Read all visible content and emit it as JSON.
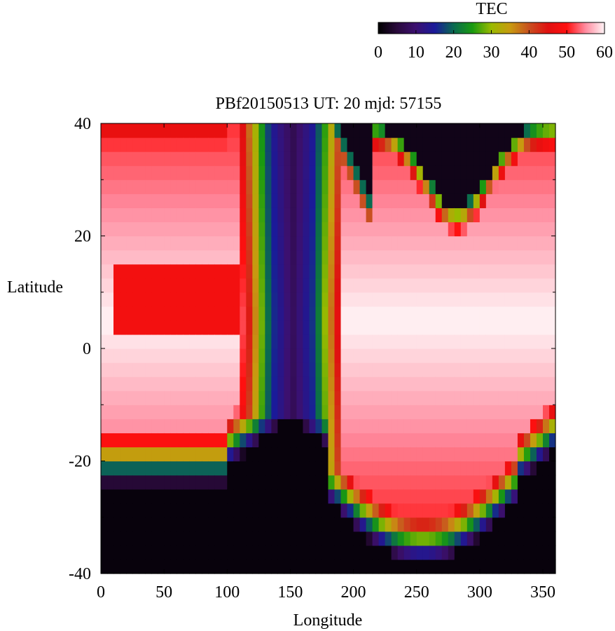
{
  "chart_data": {
    "type": "heatmap",
    "title": "PBf20150513  UT: 20  mjd: 57155",
    "xlabel": "Longitude",
    "ylabel": "Latitude",
    "xlim": [
      0,
      360
    ],
    "ylim": [
      -40,
      40
    ],
    "x_ticks": [
      "0",
      "50",
      "100",
      "150",
      "200",
      "250",
      "300",
      "350"
    ],
    "y_ticks": [
      "40",
      "20",
      "0",
      "-20",
      "-40"
    ],
    "grid": false,
    "colorbar": {
      "label": "TEC",
      "range": [
        0,
        60
      ],
      "ticks": [
        "0",
        "10",
        "20",
        "30",
        "40",
        "50",
        "60"
      ],
      "palette": [
        [
          0,
          "#000000"
        ],
        [
          5,
          "#2a0a3c"
        ],
        [
          10,
          "#3c1070"
        ],
        [
          15,
          "#1a1a9a"
        ],
        [
          20,
          "#0a6a50"
        ],
        [
          25,
          "#1a9a10"
        ],
        [
          30,
          "#9aba00"
        ],
        [
          35,
          "#c89a10"
        ],
        [
          40,
          "#c85020"
        ],
        [
          45,
          "#e01010"
        ],
        [
          50,
          "#ff1010"
        ],
        [
          55,
          "#ff8ca0"
        ],
        [
          60,
          "#fff4f6"
        ]
      ]
    },
    "grid_size": {
      "lon_step": 5,
      "lat_step": 2.5
    },
    "value_model": {
      "description_free": true,
      "trough_lon": [
        130,
        155,
        175
      ],
      "north_dark_lon": [
        190,
        350
      ],
      "south_dark_lat": -26,
      "saturation_level": 60
    }
  }
}
